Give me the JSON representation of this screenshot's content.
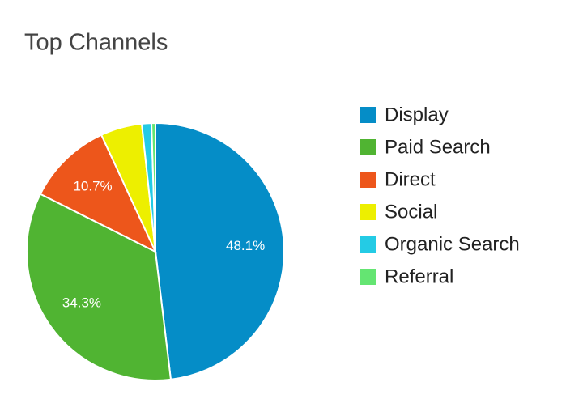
{
  "chart_data": {
    "type": "pie",
    "title": "Top Channels",
    "categories": [
      "Display",
      "Paid Search",
      "Direct",
      "Social",
      "Organic Search",
      "Referral"
    ],
    "values": [
      48.1,
      34.3,
      10.7,
      5.2,
      1.2,
      0.5
    ],
    "value_labels": [
      "48.1%",
      "34.3%",
      "10.7%",
      null,
      null,
      null
    ],
    "colors": [
      "#058dc7",
      "#50b432",
      "#ed561b",
      "#edef00",
      "#24cbe5",
      "#64e572"
    ],
    "legend": "right"
  }
}
